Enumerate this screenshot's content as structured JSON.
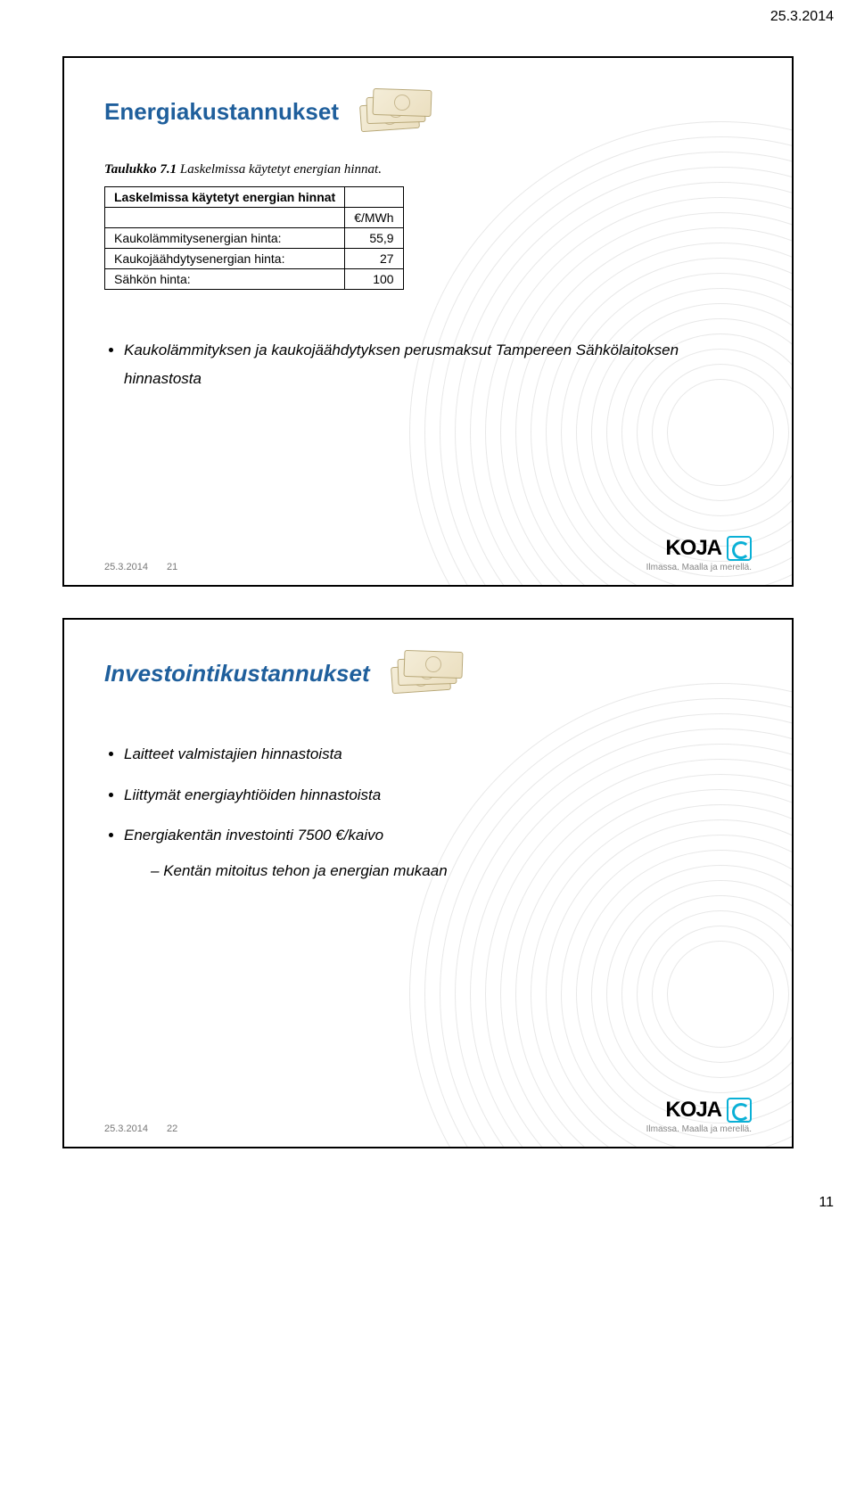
{
  "page": {
    "date": "25.3.2014",
    "number": "11"
  },
  "slide1": {
    "title": "Energiakustannukset",
    "table_caption_prefix": "Taulukko 7.1",
    "table_caption_rest": " Laskelmissa käytetyt energian hinnat.",
    "table": {
      "header_title": "Laskelmissa käytetyt energian hinnat",
      "unit": "€/MWh",
      "rows": [
        {
          "label": "Kaukolämmitysenergian hinta:",
          "value": "55,9"
        },
        {
          "label": "Kaukojäähdytysenergian hinta:",
          "value": "27"
        },
        {
          "label": "Sähkön hinta:",
          "value": "100"
        }
      ]
    },
    "bullet": "Kaukolämmityksen ja kaukojäähdytyksen perusmaksut Tampereen Sähkölaitoksen hinnastosta",
    "footer_date": "25.3.2014",
    "footer_num": "21",
    "logo_text": "KOJA",
    "tagline": "Ilmassa. Maalla ja merellä."
  },
  "slide2": {
    "title": "Investointikustannukset",
    "bullets": [
      "Laitteet valmistajien hinnastoista",
      "Liittymät energiayhtiöiden hinnastoista",
      "Energiakentän investointi 7500 €/kaivo"
    ],
    "sub_bullet": "Kentän mitoitus tehon ja energian mukaan",
    "footer_date": "25.3.2014",
    "footer_num": "22",
    "logo_text": "KOJA",
    "tagline": "Ilmassa. Maalla ja merellä."
  },
  "arcs": {
    "count": 18,
    "step": 34,
    "start": 120,
    "color": "#e8e8e8"
  }
}
